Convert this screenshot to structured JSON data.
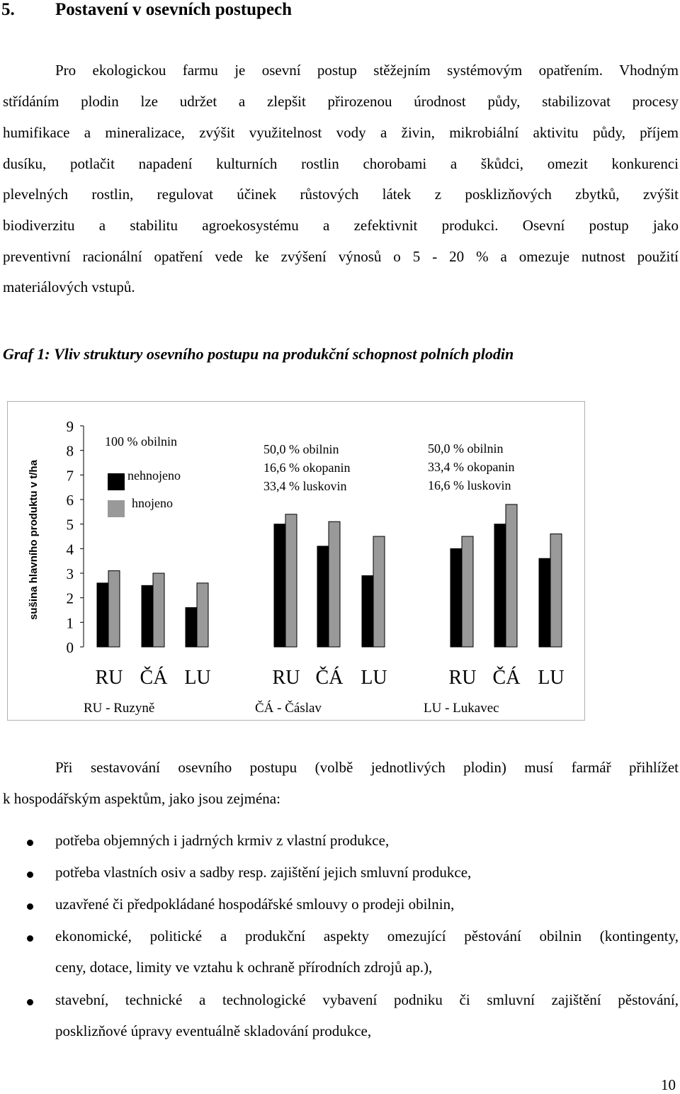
{
  "heading": {
    "number": "5.",
    "title": "Postavení v osevních postupech"
  },
  "paragraph1": [
    "Pro ekologickou farmu je osevní postup stěžejním systémovým opatřením. Vhodným",
    "střídáním plodin lze udržet a zlepšit přirozenou úrodnost půdy, stabilizovat procesy",
    "humifikace a mineralizace, zvýšit využitelnost vody a živin, mikrobiální aktivitu půdy, příjem",
    "dusíku, potlačit napadení kulturních rostlin chorobami a škůdci, omezit konkurenci",
    "plevelných rostlin, regulovat účinek růstových látek z posklizňových zbytků, zvýšit",
    "biodiverzitu a stabilitu agroekosystému a zefektivnit produkci. Osevní postup jako",
    "preventivní racionální opatření vede ke zvýšení výnosů o 5 - 20 % a omezuje nutnost použití",
    "materiálových vstupů."
  ],
  "caption": "Graf 1: Vliv struktury osevního postupu na produkční schopnost polních plodin",
  "chart_data": {
    "type": "bar",
    "title": "",
    "ylabel": "sušina hlavního produktu v t/ha",
    "ylim": [
      0,
      9
    ],
    "yticks": [
      "0",
      "1",
      "2",
      "3",
      "4",
      "5",
      "6",
      "7",
      "8",
      "9"
    ],
    "legend": {
      "nehnojeno": "nehnojeno",
      "hnojeno": "hnojeno",
      "placement": "top-left"
    },
    "colors": {
      "nehnojeno": "#000000",
      "hnojeno": "#999999"
    },
    "groups": [
      {
        "label_lines": [
          "100 % obilnin"
        ],
        "categories": [
          "RU",
          "ČÁ",
          "LU"
        ],
        "nehnojeno": [
          2.6,
          2.5,
          1.6
        ],
        "hnojeno": [
          3.1,
          3.0,
          2.6
        ]
      },
      {
        "label_lines": [
          "50,0 % obilnin",
          "16,6 % okopanin",
          "33,4 % luskovin"
        ],
        "categories": [
          "RU",
          "ČÁ",
          "LU"
        ],
        "nehnojeno": [
          5.0,
          4.1,
          2.9
        ],
        "hnojeno": [
          5.4,
          5.1,
          4.5
        ]
      },
      {
        "label_lines": [
          "50,0 % obilnin",
          "33,4 % okopanin",
          "16,6 % luskovin"
        ],
        "categories": [
          "RU",
          "ČÁ",
          "LU"
        ],
        "nehnojeno": [
          4.0,
          5.0,
          3.6
        ],
        "hnojeno": [
          4.5,
          5.8,
          4.6
        ]
      }
    ],
    "footnotes": [
      "RU - Ruzyně",
      "ČÁ - Čáslav",
      "LU - Lukavec"
    ]
  },
  "paragraph2": [
    "Při sestavování osevního postupu (volbě jednotlivých plodin) musí farmář přihlížet",
    "k hospodářským aspektům, jako jsou zejména:"
  ],
  "bullets": [
    [
      "potřeba objemných i jadrných krmiv z vlastní produkce,"
    ],
    [
      "potřeba vlastních osiv a sadby resp. zajištění jejich smluvní produkce,"
    ],
    [
      "uzavřené či předpokládané hospodářské smlouvy o prodeji obilnin,"
    ],
    [
      "ekonomické, politické a produkční aspekty omezující pěstování obilnin (kontingenty,",
      "ceny, dotace, limity ve vztahu k ochraně přírodních zdrojů ap.),"
    ],
    [
      "stavební, technické a technologické vybavení podniku či smluvní zajištění pěstování,",
      "posklizňové úpravy eventuálně skladování produkce,"
    ]
  ],
  "page_number": "10"
}
